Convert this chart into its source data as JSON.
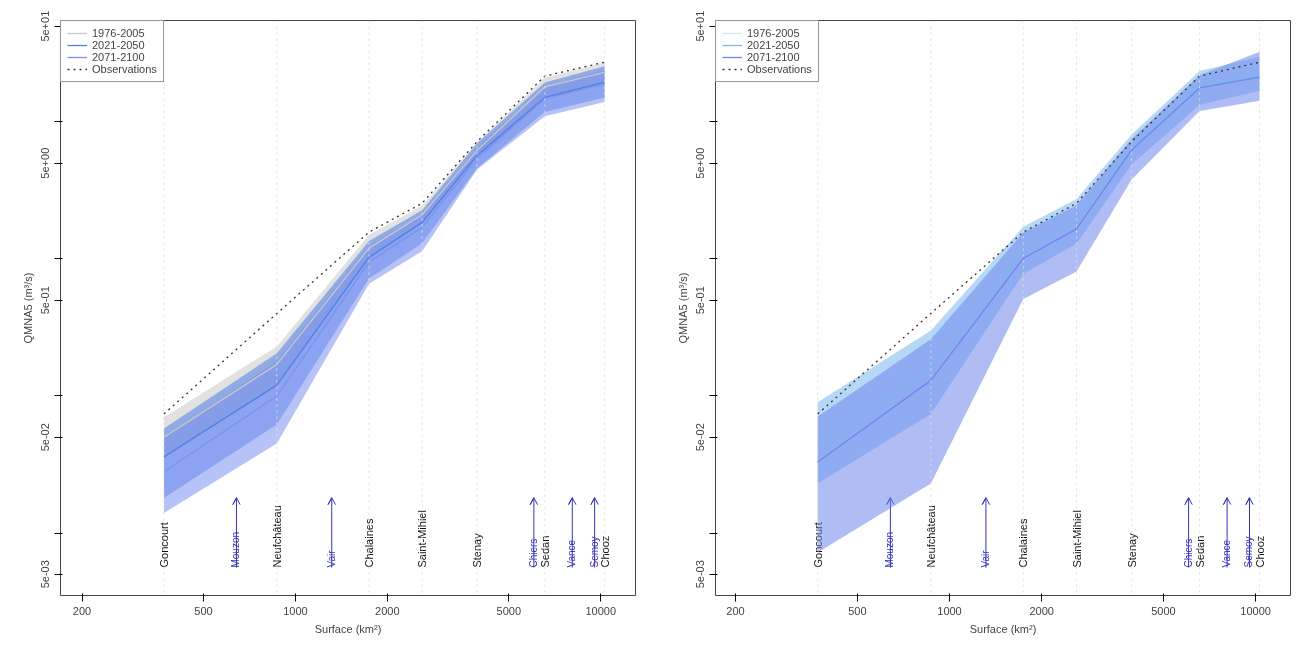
{
  "chart_data": [
    {
      "type": "line",
      "log": "xy",
      "xlabel": "Surface (km²)",
      "ylabel": "QMNA5 (m³/s)",
      "legend": "top left",
      "grid": false,
      "xlim": [
        170,
        13000
      ],
      "xticks": [
        200,
        500,
        1000,
        2000,
        5000,
        10000
      ],
      "ylim": [
        0.0035,
        55
      ],
      "yticks": [
        {
          "value": 0.005,
          "label": "5e-03"
        },
        {
          "value": 0.01,
          "label": null
        },
        {
          "value": 0.05,
          "label": "5e-02"
        },
        {
          "value": 0.1,
          "label": null
        },
        {
          "value": 0.5,
          "label": "5e-01"
        },
        {
          "value": 1,
          "label": null
        },
        {
          "value": 5,
          "label": "5e+00"
        },
        {
          "value": 10,
          "label": null
        },
        {
          "value": 50,
          "label": "5e+01"
        }
      ],
      "x": [
        371,
        869,
        1742,
        2600,
        3935,
        6560,
        10300
      ],
      "series": [
        {
          "name": "1976-2005",
          "color": "#c8c8c8",
          "values": [
            0.05,
            0.17,
            1.2,
            2.1,
            6.2,
            18,
            23
          ],
          "lower": [
            0.035,
            0.12,
            1.0,
            1.8,
            5.5,
            15,
            19
          ],
          "upper": [
            0.07,
            0.23,
            1.5,
            2.45,
            7.1,
            21,
            27
          ]
        },
        {
          "name": "2021-2050",
          "color": "#4f7fe6",
          "values": [
            0.036,
            0.12,
            1.03,
            1.85,
            5.7,
            15.1,
            19.5
          ],
          "lower": [
            0.018,
            0.062,
            0.72,
            1.3,
            4.6,
            11.8,
            15.1
          ],
          "upper": [
            0.058,
            0.205,
            1.35,
            2.27,
            7.0,
            19.4,
            25.5
          ]
        },
        {
          "name": "2071-2100",
          "color": "#7b92ee",
          "values": [
            0.028,
            0.1,
            0.95,
            1.7,
            5.4,
            14.8,
            19
          ],
          "lower": [
            0.014,
            0.045,
            0.66,
            1.14,
            4.5,
            11,
            14
          ],
          "upper": [
            0.05,
            0.18,
            1.25,
            2.1,
            6.5,
            18,
            24
          ]
        },
        {
          "name": "Observations",
          "line_style": "dotted",
          "color": "#333333",
          "values": [
            0.074,
            0.4,
            1.57,
            2.55,
            7.2,
            21.6,
            27.3
          ]
        }
      ],
      "ref_lines": [
        {
          "axis": "x",
          "value": 371,
          "label": "Goncourt",
          "color": "#dddddd",
          "line_style": "dotted"
        },
        {
          "axis": "x",
          "value": 869,
          "label": "Neufchâteau",
          "color": "#dddddd",
          "line_style": "dotted"
        },
        {
          "axis": "x",
          "value": 1742,
          "label": "Chalaines",
          "color": "#dddddd",
          "line_style": "dotted"
        },
        {
          "axis": "x",
          "value": 2600,
          "label": "Saint-Mihiel",
          "color": "#dddddd",
          "line_style": "dotted"
        },
        {
          "axis": "x",
          "value": 3935,
          "label": "Stenay",
          "color": "#dddddd",
          "line_style": "dotted"
        },
        {
          "axis": "x",
          "value": 6560,
          "label": "Sedan",
          "color": "#dddddd",
          "line_style": "dotted"
        },
        {
          "axis": "x",
          "value": 10300,
          "label": "Chooz",
          "color": "#dddddd",
          "line_style": "dotted"
        },
        {
          "axis": "x",
          "value": 641,
          "label": "Mouzon",
          "color": "#3333bb",
          "line_style": "solid"
        },
        {
          "axis": "x",
          "value": 1315,
          "label": "Vair",
          "color": "#3333bb",
          "line_style": "solid"
        },
        {
          "axis": "x",
          "value": 6040,
          "label": "Chiers",
          "color": "#3333bb",
          "line_style": "solid"
        },
        {
          "axis": "x",
          "value": 8070,
          "label": "Vance",
          "color": "#3333bb",
          "line_style": "solid"
        },
        {
          "axis": "x",
          "value": 9550,
          "label": "Semoy",
          "color": "#3333bb",
          "line_style": "solid"
        }
      ]
    },
    {
      "type": "line",
      "log": "xy",
      "xlabel": "Surface (km²)",
      "ylabel": "QMNA5 (m³/s)",
      "legend": "top left",
      "grid": false,
      "xlim": [
        172,
        13000
      ],
      "xticks": [
        200,
        500,
        1000,
        2000,
        5000,
        10000
      ],
      "ylim": [
        0.0035,
        55
      ],
      "yticks": [
        {
          "value": 0.005,
          "label": "5e-03"
        },
        {
          "value": 0.01,
          "label": null
        },
        {
          "value": 0.05,
          "label": "5e-02"
        },
        {
          "value": 0.1,
          "label": null
        },
        {
          "value": 0.5,
          "label": "5e-01"
        },
        {
          "value": 1,
          "label": null
        },
        {
          "value": 5,
          "label": "5e+00"
        },
        {
          "value": 10,
          "label": null
        },
        {
          "value": 50,
          "label": "5e+01"
        }
      ],
      "x": [
        371,
        869,
        1742,
        2600,
        3935,
        6560,
        10300
      ],
      "series": [
        {
          "name": "1976-2005",
          "color": "#d6e6f2",
          "values": [
            null,
            null,
            null,
            null,
            null,
            null,
            null
          ]
        },
        {
          "name": "2021-2050",
          "color": "#7ab8ee",
          "values": [
            0.045,
            0.16,
            1.15,
            1.9,
            6.6,
            18.5,
            22
          ],
          "lower": [
            0.023,
            0.074,
            0.78,
            1.29,
            4.9,
            13.3,
            16.9
          ],
          "upper": [
            0.09,
            0.3,
            1.72,
            2.74,
            8.1,
            23.5,
            30
          ]
        },
        {
          "name": "2071-2100",
          "color": "#6f86ec",
          "values": [
            0.033,
            0.13,
            1.01,
            1.66,
            6.25,
            17.7,
            21.2
          ],
          "lower": [
            0.0072,
            0.023,
            0.51,
            0.81,
            3.8,
            12,
            14.3
          ],
          "upper": [
            0.071,
            0.26,
            1.56,
            2.47,
            7.5,
            21.9,
            32.5
          ]
        },
        {
          "name": "Observations",
          "line_style": "dotted",
          "color": "#333333",
          "values": [
            0.074,
            0.4,
            1.57,
            2.55,
            7.2,
            21.6,
            27.3
          ]
        }
      ],
      "ref_lines": [
        {
          "axis": "x",
          "value": 371,
          "label": "Goncourt",
          "color": "#dddddd",
          "line_style": "dotted"
        },
        {
          "axis": "x",
          "value": 869,
          "label": "Neufchâteau",
          "color": "#dddddd",
          "line_style": "dotted"
        },
        {
          "axis": "x",
          "value": 1742,
          "label": "Chalaines",
          "color": "#dddddd",
          "line_style": "dotted"
        },
        {
          "axis": "x",
          "value": 2600,
          "label": "Saint-Mihiel",
          "color": "#dddddd",
          "line_style": "dotted"
        },
        {
          "axis": "x",
          "value": 3935,
          "label": "Stenay",
          "color": "#dddddd",
          "line_style": "dotted"
        },
        {
          "axis": "x",
          "value": 6560,
          "label": "Sedan",
          "color": "#dddddd",
          "line_style": "dotted"
        },
        {
          "axis": "x",
          "value": 10300,
          "label": "Chooz",
          "color": "#dddddd",
          "line_style": "dotted"
        },
        {
          "axis": "x",
          "value": 641,
          "label": "Mouzon",
          "color": "#3333bb",
          "line_style": "solid"
        },
        {
          "axis": "x",
          "value": 1315,
          "label": "Vair",
          "color": "#3333bb",
          "line_style": "solid"
        },
        {
          "axis": "x",
          "value": 6040,
          "label": "Chiers",
          "color": "#3333bb",
          "line_style": "solid"
        },
        {
          "axis": "x",
          "value": 8070,
          "label": "Vance",
          "color": "#3333bb",
          "line_style": "solid"
        },
        {
          "axis": "x",
          "value": 9550,
          "label": "Semoy",
          "color": "#3333bb",
          "line_style": "solid"
        }
      ]
    }
  ]
}
